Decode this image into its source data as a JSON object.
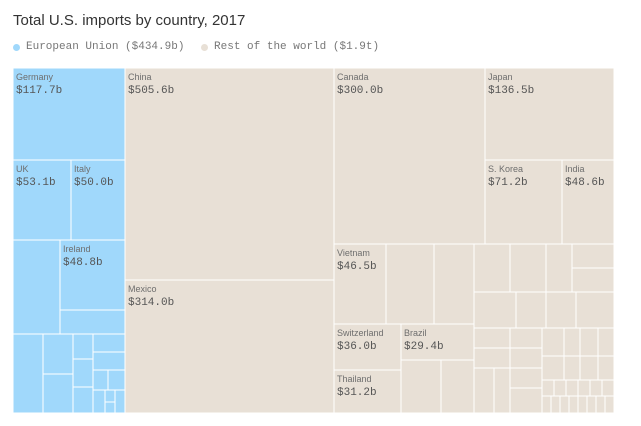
{
  "colors": {
    "eu": "#a0d8fb",
    "rest": "#e8e0d6",
    "border": "#ffffff",
    "text": "#555555"
  },
  "chart_data": {
    "type": "treemap",
    "title": "Total U.S. imports by country, 2017",
    "legend": [
      {
        "key": "eu",
        "label": "European Union ($434.9b)"
      },
      {
        "key": "rest",
        "label": "Rest of the world ($1.9t)"
      }
    ],
    "labeled": [
      {
        "country": "Germany",
        "value": "$117.7b",
        "group": "eu"
      },
      {
        "country": "UK",
        "value": "$53.1b",
        "group": "eu"
      },
      {
        "country": "Italy",
        "value": "$50.0b",
        "group": "eu"
      },
      {
        "country": "Ireland",
        "value": "$48.8b",
        "group": "eu"
      },
      {
        "country": "China",
        "value": "$505.6b",
        "group": "rest"
      },
      {
        "country": "Mexico",
        "value": "$314.0b",
        "group": "rest"
      },
      {
        "country": "Canada",
        "value": "$300.0b",
        "group": "rest"
      },
      {
        "country": "Japan",
        "value": "$136.5b",
        "group": "rest"
      },
      {
        "country": "S. Korea",
        "value": "$71.2b",
        "group": "rest"
      },
      {
        "country": "India",
        "value": "$48.6b",
        "group": "rest"
      },
      {
        "country": "Vietnam",
        "value": "$46.5b",
        "group": "rest"
      },
      {
        "country": "Switzerland",
        "value": "$36.0b",
        "group": "rest"
      },
      {
        "country": "Brazil",
        "value": "$29.4b",
        "group": "rest"
      },
      {
        "country": "Thailand",
        "value": "$31.2b",
        "group": "rest"
      }
    ]
  }
}
